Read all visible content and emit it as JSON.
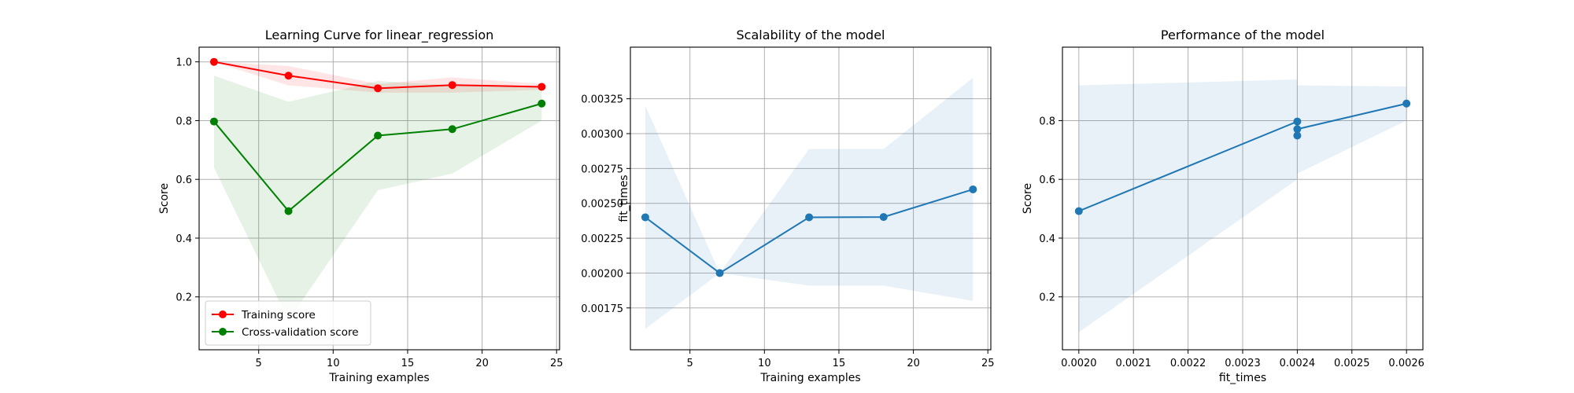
{
  "chart_data": [
    {
      "type": "line",
      "title": "Learning Curve for linear_regression",
      "xlabel": "Training examples",
      "ylabel": "Score",
      "xlim": [
        1.0,
        25.2
      ],
      "ylim": [
        0.02,
        1.05
      ],
      "xticks": [
        5,
        10,
        15,
        20,
        25
      ],
      "yticks": [
        0.2,
        0.4,
        0.6,
        0.8,
        1.0
      ],
      "ytick_decimals": 1,
      "grid": true,
      "legend": "lower-left",
      "x": [
        2,
        7,
        13,
        18,
        24
      ],
      "series": [
        {
          "name": "Training score",
          "color": "#ff0000",
          "values": [
            1.0,
            0.953,
            0.91,
            0.921,
            0.915
          ],
          "band_low": [
            1.0,
            0.92,
            0.895,
            0.895,
            0.905
          ],
          "band_high": [
            1.0,
            0.986,
            0.925,
            0.947,
            0.925
          ]
        },
        {
          "name": "Cross-validation score",
          "color": "#008000",
          "values": [
            0.797,
            0.492,
            0.749,
            0.771,
            0.858
          ],
          "band_low": [
            0.64,
            0.12,
            0.563,
            0.62,
            0.8
          ],
          "band_high": [
            0.953,
            0.864,
            0.935,
            0.92,
            0.916
          ]
        }
      ]
    },
    {
      "type": "line",
      "title": "Scalability of the model",
      "xlabel": "Training examples",
      "ylabel": "fit_times",
      "xlim": [
        1.0,
        25.2
      ],
      "ylim": [
        0.00145,
        0.00362
      ],
      "xticks": [
        5,
        10,
        15,
        20,
        25
      ],
      "yticks": [
        0.00175,
        0.002,
        0.00225,
        0.0025,
        0.00275,
        0.003,
        0.00325
      ],
      "ytick_decimals": 5,
      "grid": true,
      "x": [
        2,
        7,
        13,
        18,
        24
      ],
      "series": [
        {
          "color": "#1f77b4",
          "values": [
            0.0024,
            0.002,
            0.0024,
            0.002402,
            0.0026
          ],
          "band_low": [
            0.0016,
            0.002,
            0.00191,
            0.00191,
            0.0018
          ],
          "band_high": [
            0.0032,
            0.002,
            0.00289,
            0.00289,
            0.0034
          ]
        }
      ]
    },
    {
      "type": "line",
      "title": "Performance of the model",
      "xlabel": "fit_times",
      "ylabel": "Score",
      "xlim": [
        0.00197,
        0.00263
      ],
      "ylim": [
        0.02,
        1.05
      ],
      "xticks": [
        0.002,
        0.0021,
        0.0022,
        0.0023,
        0.0024,
        0.0025,
        0.0026
      ],
      "yticks": [
        0.2,
        0.4,
        0.6,
        0.8
      ],
      "ytick_decimals": 1,
      "grid": true,
      "x": [
        0.002,
        0.0024,
        0.0024,
        0.0024,
        0.0026
      ],
      "series": [
        {
          "color": "#1f77b4",
          "values": [
            0.492,
            0.797,
            0.749,
            0.771,
            0.858
          ],
          "band_low": [
            0.08,
            0.6,
            0.563,
            0.62,
            0.8
          ],
          "band_high": [
            0.92,
            0.94,
            0.935,
            0.92,
            0.916
          ]
        }
      ]
    }
  ]
}
